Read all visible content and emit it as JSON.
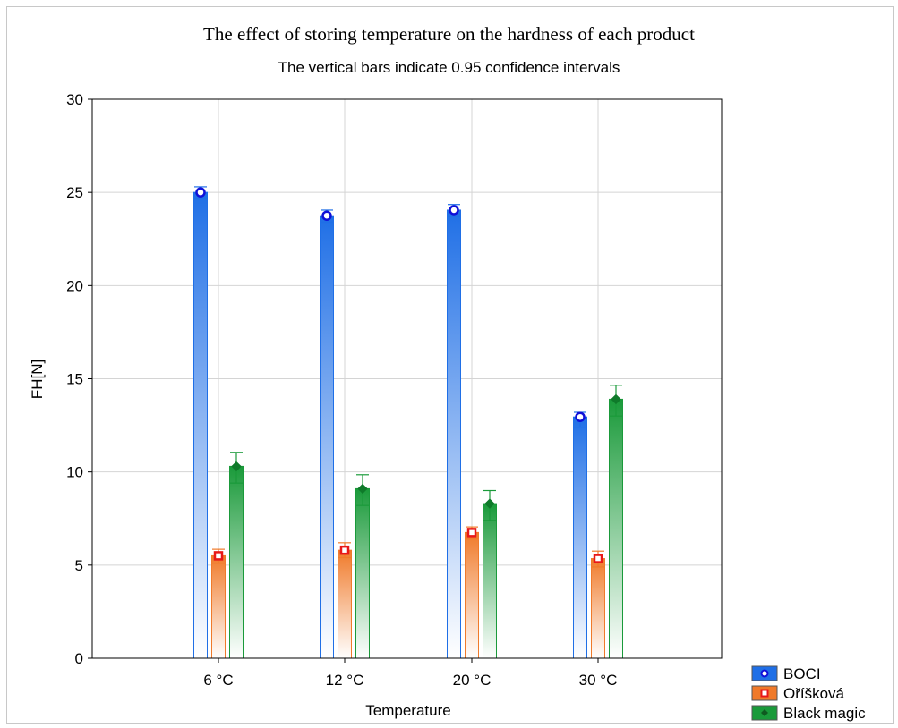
{
  "chart_data": {
    "type": "bar",
    "title": "The effect of storing temperature on the hardness of each product",
    "subtitle": "The vertical bars indicate 0.95 confidence intervals",
    "xlabel": "Temperature",
    "ylabel": "FH[N]",
    "categories": [
      "6 °C",
      "12 °C",
      "20 °C",
      "30 °C"
    ],
    "ylim": [
      0,
      30
    ],
    "yticks": [
      0,
      5,
      10,
      15,
      20,
      25,
      30
    ],
    "grid": true,
    "legend_position": "bottom-right",
    "series": [
      {
        "name": "BOCI",
        "color": "#1f6fe6",
        "marker": "circle",
        "values": [
          25.0,
          23.75,
          24.05,
          12.95
        ],
        "ci_low": [
          24.7,
          23.4,
          23.7,
          12.4
        ],
        "ci_high": [
          25.3,
          24.05,
          24.35,
          13.2
        ]
      },
      {
        "name": "Oříšková",
        "color": "#f07a2a",
        "marker": "square",
        "values": [
          5.5,
          5.8,
          6.75,
          5.35
        ],
        "ci_low": [
          5.1,
          5.4,
          6.4,
          4.9
        ],
        "ci_high": [
          5.85,
          6.2,
          7.05,
          5.75
        ]
      },
      {
        "name": "Black magic",
        "color": "#1a9a3a",
        "marker": "diamond",
        "values": [
          10.3,
          9.1,
          8.3,
          13.9
        ],
        "ci_low": [
          9.4,
          8.2,
          7.4,
          13.0
        ],
        "ci_high": [
          11.05,
          9.85,
          9.0,
          14.65
        ]
      }
    ]
  }
}
